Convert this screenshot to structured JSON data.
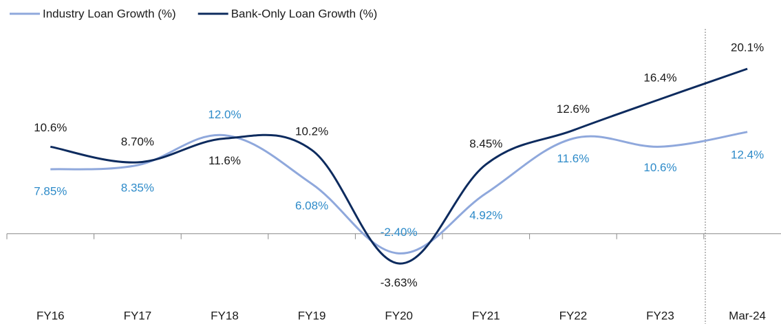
{
  "chart_data": {
    "type": "line",
    "categories": [
      "FY16",
      "FY17",
      "FY18",
      "FY19",
      "FY20",
      "FY21",
      "FY22",
      "FY23",
      "Mar-24"
    ],
    "series": [
      {
        "name": "Industry Loan Growth (%)",
        "color": "#8fa8dc",
        "label_color": "#2e8bc9",
        "values": [
          7.85,
          8.35,
          12.0,
          6.08,
          -2.4,
          4.92,
          11.6,
          10.6,
          12.4
        ],
        "value_labels": [
          "7.85%",
          "8.35%",
          "12.0%",
          "6.08%",
          "-2.40%",
          "4.92%",
          "11.6%",
          "10.6%",
          "12.4%"
        ]
      },
      {
        "name": "Bank-Only Loan Growth (%)",
        "color": "#0d2b5e",
        "label_color": "#1a1a1a",
        "values": [
          10.6,
          8.7,
          11.6,
          10.2,
          -3.63,
          8.45,
          12.6,
          16.4,
          20.1
        ],
        "value_labels": [
          "10.6%",
          "8.70%",
          "11.6%",
          "10.2%",
          "-3.63%",
          "8.45%",
          "12.6%",
          "16.4%",
          "20.1%"
        ]
      }
    ],
    "legend": "top-left"
  }
}
